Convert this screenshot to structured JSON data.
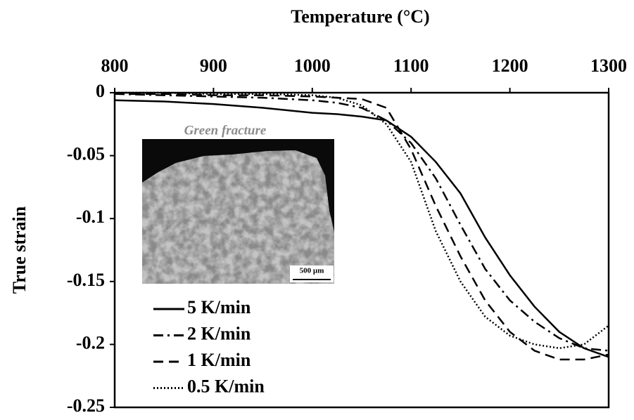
{
  "chart_data": {
    "type": "line",
    "x_label": "Temperature (°C)",
    "y_label": "True strain",
    "x": [
      800,
      850,
      900,
      950,
      1000,
      1025,
      1050,
      1075,
      1100,
      1125,
      1150,
      1175,
      1200,
      1225,
      1250,
      1275,
      1300
    ],
    "series": [
      {
        "name": "5 K/min",
        "color": "#000000",
        "dash": "solid",
        "values": [
          -0.006,
          -0.007,
          -0.009,
          -0.012,
          -0.016,
          -0.017,
          -0.019,
          -0.022,
          -0.035,
          -0.055,
          -0.08,
          -0.115,
          -0.145,
          -0.17,
          -0.19,
          -0.203,
          -0.21
        ]
      },
      {
        "name": "2 K/min",
        "color": "#000000",
        "dash": "dashdot",
        "values": [
          -0.001,
          -0.002,
          -0.003,
          -0.004,
          -0.006,
          -0.008,
          -0.012,
          -0.022,
          -0.04,
          -0.068,
          -0.105,
          -0.14,
          -0.165,
          -0.182,
          -0.195,
          -0.203,
          -0.205
        ]
      },
      {
        "name": "1 K/min",
        "color": "#000000",
        "dash": "dashed",
        "values": [
          -0.001,
          -0.001,
          -0.002,
          -0.002,
          -0.003,
          -0.004,
          -0.005,
          -0.012,
          -0.045,
          -0.09,
          -0.13,
          -0.165,
          -0.19,
          -0.205,
          -0.212,
          -0.212,
          -0.208
        ]
      },
      {
        "name": "0.5 K/min",
        "color": "#000000",
        "dash": "dotted",
        "values": [
          0,
          0,
          -0.001,
          -0.001,
          -0.002,
          -0.004,
          -0.01,
          -0.025,
          -0.055,
          -0.11,
          -0.15,
          -0.178,
          -0.193,
          -0.2,
          -0.203,
          -0.2,
          -0.185
        ]
      }
    ],
    "xlim": [
      800,
      1300
    ],
    "xticks": [
      800,
      900,
      1000,
      1100,
      1200,
      1300
    ],
    "ylim": [
      -0.25,
      0
    ],
    "yticks": [
      0,
      -0.05,
      -0.1,
      -0.15,
      -0.2,
      -0.25
    ],
    "x_axis_position": "top",
    "legend": "lower left",
    "annotations": [
      "Green fracture",
      "500 µm"
    ]
  }
}
